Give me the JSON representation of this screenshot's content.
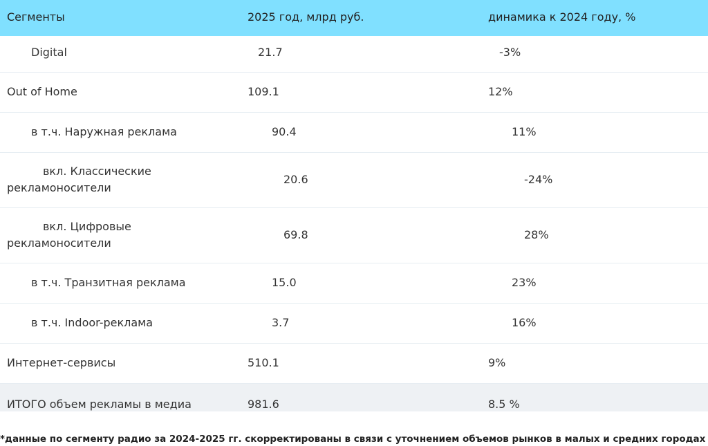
{
  "table": {
    "header": [
      "Сегменты",
      "2025 год, млрд руб.",
      "динамика к 2024 году, %"
    ],
    "rows": [
      [
        "Digital",
        "21.7",
        "-3%"
      ],
      [
        "Out of Home",
        "109.1",
        "12%"
      ],
      [
        "в т.ч. Наружная реклама",
        "90.4",
        "11%"
      ],
      [
        "вкл. Классические рекламоносители",
        "20.6",
        "-24%"
      ],
      [
        "вкл. Цифровые рекламоносители",
        "69.8",
        "28%"
      ],
      [
        "в т.ч. Транзитная реклама",
        "15.0",
        "23%"
      ],
      [
        "в т.ч. Indoor-реклама",
        "3.7",
        "16%"
      ],
      [
        "Интернет-сервисы",
        "510.1",
        "9%"
      ],
      [
        "ИТОГО объем рекламы в медиа",
        "981.6",
        "8.5 %"
      ]
    ]
  },
  "footnote": "*данные по сегменту радио за 2024-2025 гг. скорректированы в связи с уточнением объемов рынков в малых и средних городах"
}
